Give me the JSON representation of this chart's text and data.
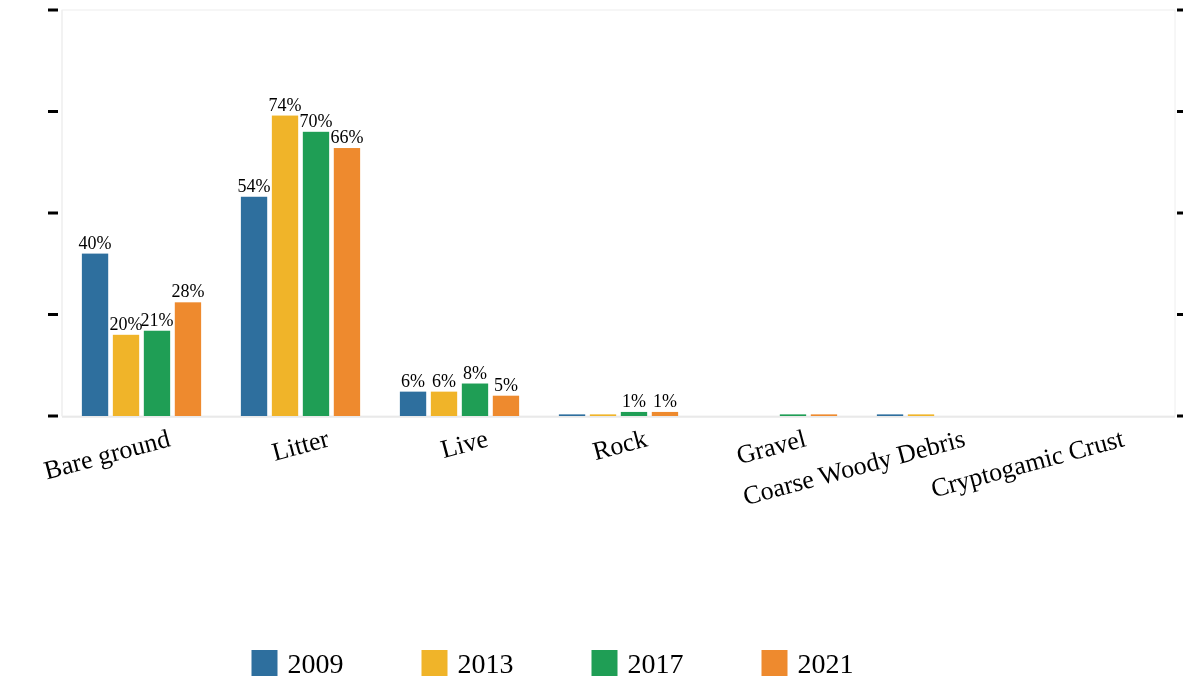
{
  "chart_data": {
    "type": "bar",
    "categories": [
      "Bare ground",
      "Litter",
      "Live",
      "Rock",
      "Gravel",
      "Coarse Woody Debris",
      "Cryptogamic Crust"
    ],
    "series": [
      {
        "name": "2009",
        "color": "#2e6f9e",
        "values": [
          40,
          54,
          6,
          0.4,
          null,
          0.4,
          null
        ],
        "value_labels": [
          "40%",
          "54%",
          "6%",
          null,
          null,
          null,
          null
        ]
      },
      {
        "name": "2013",
        "color": "#f0b429",
        "values": [
          20,
          74,
          6,
          0.4,
          null,
          0.4,
          null
        ],
        "value_labels": [
          "20%",
          "74%",
          "6%",
          null,
          null,
          null,
          null
        ]
      },
      {
        "name": "2017",
        "color": "#1f9e55",
        "values": [
          21,
          70,
          8,
          1,
          0.4,
          null,
          null
        ],
        "value_labels": [
          "21%",
          "70%",
          "8%",
          "1%",
          null,
          null,
          null
        ]
      },
      {
        "name": "2021",
        "color": "#ee8a2e",
        "values": [
          28,
          66,
          5,
          1,
          0.4,
          null,
          null
        ],
        "value_labels": [
          "28%",
          "66%",
          "5%",
          "1%",
          null,
          null,
          null
        ]
      }
    ],
    "ylim": [
      0,
      100
    ],
    "yticks": [
      {
        "value": 0,
        "label": null
      },
      {
        "value": 25,
        "label": null
      },
      {
        "value": 50,
        "label": null
      },
      {
        "value": 75,
        "label": null
      },
      {
        "value": 100,
        "label": null
      }
    ],
    "tick_labels": "x",
    "grid": false,
    "legend": "bottom"
  }
}
